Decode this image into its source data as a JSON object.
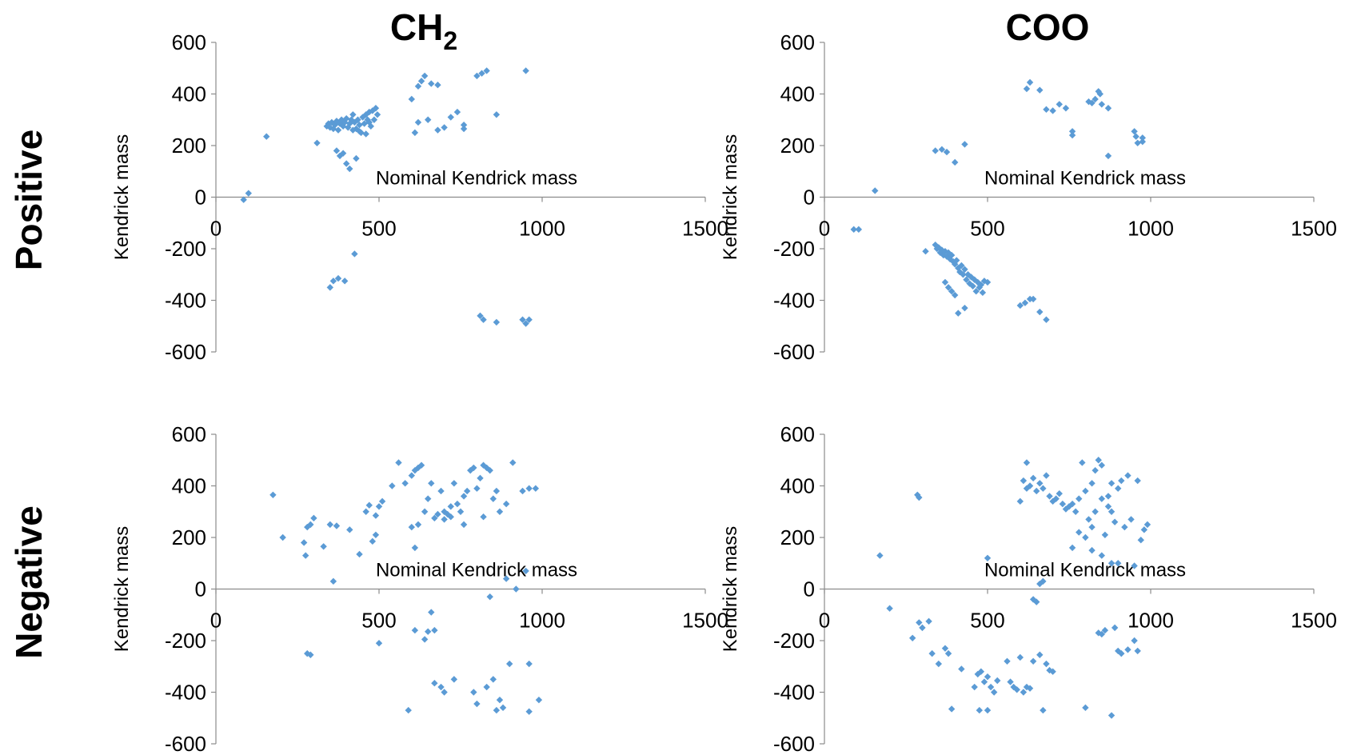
{
  "column_titles": {
    "ch2_base": "CH",
    "ch2_sub": "2",
    "coo": "COO"
  },
  "row_titles": {
    "positive": "Positive",
    "negative": "Negative"
  },
  "marker_color": "#5b9bd5",
  "chart_data": [
    {
      "type": "scatter",
      "title": "CH2",
      "row": "Positive",
      "xlabel": "Nominal Kendrick mass",
      "ylabel": "Kendrick mass",
      "xlim": [
        0,
        1500
      ],
      "ylim": [
        -600,
        600
      ],
      "xticks": [
        0,
        500,
        1000,
        1500
      ],
      "yticks": [
        600,
        400,
        200,
        0,
        -200,
        -400,
        -600
      ],
      "points": [
        [
          85,
          -10
        ],
        [
          100,
          15
        ],
        [
          155,
          235
        ],
        [
          310,
          210
        ],
        [
          340,
          275
        ],
        [
          345,
          285
        ],
        [
          350,
          270
        ],
        [
          355,
          290
        ],
        [
          360,
          265
        ],
        [
          365,
          280
        ],
        [
          370,
          295
        ],
        [
          375,
          260
        ],
        [
          380,
          285
        ],
        [
          385,
          300
        ],
        [
          390,
          275
        ],
        [
          395,
          290
        ],
        [
          400,
          305
        ],
        [
          405,
          270
        ],
        [
          410,
          285
        ],
        [
          415,
          300
        ],
        [
          420,
          320
        ],
        [
          425,
          290
        ],
        [
          430,
          265
        ],
        [
          435,
          300
        ],
        [
          440,
          280
        ],
        [
          445,
          250
        ],
        [
          450,
          310
        ],
        [
          455,
          285
        ],
        [
          460,
          320
        ],
        [
          465,
          300
        ],
        [
          470,
          330
        ],
        [
          475,
          275
        ],
        [
          480,
          335
        ],
        [
          485,
          300
        ],
        [
          490,
          345
        ],
        [
          495,
          320
        ],
        [
          370,
          180
        ],
        [
          380,
          160
        ],
        [
          390,
          170
        ],
        [
          400,
          130
        ],
        [
          410,
          110
        ],
        [
          430,
          150
        ],
        [
          420,
          260
        ],
        [
          440,
          255
        ],
        [
          460,
          245
        ],
        [
          470,
          290
        ],
        [
          350,
          -350
        ],
        [
          360,
          -325
        ],
        [
          375,
          -315
        ],
        [
          395,
          -325
        ],
        [
          425,
          -220
        ],
        [
          600,
          380
        ],
        [
          620,
          430
        ],
        [
          630,
          450
        ],
        [
          640,
          470
        ],
        [
          660,
          440
        ],
        [
          680,
          435
        ],
        [
          610,
          250
        ],
        [
          620,
          290
        ],
        [
          650,
          300
        ],
        [
          680,
          260
        ],
        [
          700,
          270
        ],
        [
          720,
          310
        ],
        [
          740,
          330
        ],
        [
          760,
          280
        ],
        [
          760,
          265
        ],
        [
          800,
          470
        ],
        [
          815,
          480
        ],
        [
          830,
          490
        ],
        [
          860,
          320
        ],
        [
          950,
          490
        ],
        [
          810,
          -460
        ],
        [
          820,
          -475
        ],
        [
          860,
          -485
        ],
        [
          940,
          -475
        ],
        [
          950,
          -490
        ],
        [
          960,
          -475
        ]
      ]
    },
    {
      "type": "scatter",
      "title": "COO",
      "row": "Positive",
      "xlabel": "Nominal Kendrick mass",
      "ylabel": "Kendrick mass",
      "xlim": [
        0,
        1500
      ],
      "ylim": [
        -600,
        600
      ],
      "xticks": [
        0,
        500,
        1000,
        1500
      ],
      "yticks": [
        600,
        400,
        200,
        0,
        -200,
        -400,
        -600
      ],
      "points": [
        [
          90,
          -125
        ],
        [
          105,
          -125
        ],
        [
          155,
          25
        ],
        [
          340,
          180
        ],
        [
          360,
          185
        ],
        [
          375,
          175
        ],
        [
          400,
          135
        ],
        [
          430,
          205
        ],
        [
          310,
          -210
        ],
        [
          340,
          -185
        ],
        [
          345,
          -200
        ],
        [
          350,
          -195
        ],
        [
          355,
          -215
        ],
        [
          360,
          -205
        ],
        [
          365,
          -225
        ],
        [
          370,
          -210
        ],
        [
          375,
          -230
        ],
        [
          380,
          -215
        ],
        [
          385,
          -240
        ],
        [
          390,
          -225
        ],
        [
          395,
          -250
        ],
        [
          400,
          -260
        ],
        [
          405,
          -245
        ],
        [
          410,
          -275
        ],
        [
          415,
          -290
        ],
        [
          420,
          -265
        ],
        [
          425,
          -300
        ],
        [
          430,
          -280
        ],
        [
          435,
          -320
        ],
        [
          440,
          -300
        ],
        [
          445,
          -335
        ],
        [
          450,
          -310
        ],
        [
          455,
          -345
        ],
        [
          460,
          -320
        ],
        [
          465,
          -365
        ],
        [
          470,
          -330
        ],
        [
          475,
          -350
        ],
        [
          480,
          -340
        ],
        [
          485,
          -370
        ],
        [
          490,
          -325
        ],
        [
          500,
          -330
        ],
        [
          370,
          -330
        ],
        [
          380,
          -350
        ],
        [
          390,
          -365
        ],
        [
          400,
          -380
        ],
        [
          410,
          -450
        ],
        [
          430,
          -430
        ],
        [
          600,
          -420
        ],
        [
          615,
          -410
        ],
        [
          630,
          -395
        ],
        [
          640,
          -395
        ],
        [
          660,
          -445
        ],
        [
          680,
          -475
        ],
        [
          620,
          420
        ],
        [
          630,
          445
        ],
        [
          660,
          415
        ],
        [
          680,
          340
        ],
        [
          700,
          335
        ],
        [
          720,
          360
        ],
        [
          740,
          345
        ],
        [
          760,
          240
        ],
        [
          760,
          255
        ],
        [
          810,
          370
        ],
        [
          820,
          365
        ],
        [
          830,
          380
        ],
        [
          840,
          410
        ],
        [
          845,
          400
        ],
        [
          850,
          360
        ],
        [
          870,
          345
        ],
        [
          870,
          160
        ],
        [
          950,
          255
        ],
        [
          955,
          235
        ],
        [
          960,
          210
        ],
        [
          975,
          215
        ],
        [
          975,
          230
        ]
      ]
    },
    {
      "type": "scatter",
      "title": "CH2",
      "row": "Negative",
      "xlabel": "Nominal Kendrick mass",
      "ylabel": "Kendrick mass",
      "xlim": [
        0,
        1500
      ],
      "ylim": [
        -600,
        600
      ],
      "xticks": [
        0,
        500,
        1000,
        1500
      ],
      "yticks": [
        600,
        400,
        200,
        0,
        -200,
        -400,
        -600
      ],
      "points": [
        [
          175,
          365
        ],
        [
          205,
          200
        ],
        [
          270,
          180
        ],
        [
          275,
          130
        ],
        [
          280,
          240
        ],
        [
          290,
          250
        ],
        [
          300,
          275
        ],
        [
          330,
          165
        ],
        [
          350,
          250
        ],
        [
          360,
          30
        ],
        [
          370,
          245
        ],
        [
          410,
          230
        ],
        [
          440,
          135
        ],
        [
          460,
          300
        ],
        [
          470,
          325
        ],
        [
          480,
          185
        ],
        [
          490,
          285
        ],
        [
          500,
          320
        ],
        [
          510,
          340
        ],
        [
          490,
          210
        ],
        [
          540,
          400
        ],
        [
          560,
          490
        ],
        [
          580,
          410
        ],
        [
          600,
          440
        ],
        [
          610,
          460
        ],
        [
          620,
          470
        ],
        [
          630,
          480
        ],
        [
          600,
          240
        ],
        [
          610,
          160
        ],
        [
          620,
          250
        ],
        [
          640,
          300
        ],
        [
          650,
          350
        ],
        [
          660,
          410
        ],
        [
          670,
          275
        ],
        [
          680,
          290
        ],
        [
          690,
          380
        ],
        [
          700,
          300
        ],
        [
          710,
          290
        ],
        [
          720,
          320
        ],
        [
          730,
          410
        ],
        [
          740,
          330
        ],
        [
          750,
          300
        ],
        [
          760,
          360
        ],
        [
          770,
          380
        ],
        [
          780,
          460
        ],
        [
          790,
          470
        ],
        [
          800,
          390
        ],
        [
          810,
          430
        ],
        [
          820,
          480
        ],
        [
          830,
          470
        ],
        [
          840,
          460
        ],
        [
          850,
          350
        ],
        [
          860,
          380
        ],
        [
          870,
          300
        ],
        [
          890,
          330
        ],
        [
          910,
          490
        ],
        [
          940,
          380
        ],
        [
          960,
          390
        ],
        [
          980,
          390
        ],
        [
          700,
          270
        ],
        [
          720,
          280
        ],
        [
          760,
          250
        ],
        [
          820,
          280
        ],
        [
          280,
          -250
        ],
        [
          290,
          -255
        ],
        [
          500,
          -210
        ],
        [
          590,
          -470
        ],
        [
          610,
          -160
        ],
        [
          640,
          -195
        ],
        [
          650,
          -165
        ],
        [
          660,
          -90
        ],
        [
          670,
          -160
        ],
        [
          670,
          -365
        ],
        [
          690,
          -380
        ],
        [
          700,
          -400
        ],
        [
          730,
          -350
        ],
        [
          790,
          -400
        ],
        [
          800,
          -445
        ],
        [
          830,
          -380
        ],
        [
          840,
          -30
        ],
        [
          850,
          -350
        ],
        [
          860,
          -470
        ],
        [
          870,
          -430
        ],
        [
          880,
          -460
        ],
        [
          890,
          40
        ],
        [
          900,
          -290
        ],
        [
          920,
          0
        ],
        [
          950,
          70
        ],
        [
          960,
          -290
        ],
        [
          960,
          -475
        ],
        [
          990,
          -430
        ]
      ]
    },
    {
      "type": "scatter",
      "title": "COO",
      "row": "Negative",
      "xlabel": "Nominal Kendrick mass",
      "ylabel": "Kendrick mass",
      "xlim": [
        0,
        1500
      ],
      "ylim": [
        -600,
        600
      ],
      "xticks": [
        0,
        500,
        1000,
        1500
      ],
      "yticks": [
        600,
        400,
        200,
        0,
        -200,
        -400,
        -600
      ],
      "points": [
        [
          170,
          130
        ],
        [
          200,
          -75
        ],
        [
          270,
          -190
        ],
        [
          285,
          365
        ],
        [
          290,
          355
        ],
        [
          290,
          -130
        ],
        [
          300,
          -150
        ],
        [
          320,
          -125
        ],
        [
          330,
          -250
        ],
        [
          350,
          -290
        ],
        [
          370,
          -230
        ],
        [
          380,
          -250
        ],
        [
          390,
          -465
        ],
        [
          420,
          -310
        ],
        [
          460,
          -380
        ],
        [
          470,
          -330
        ],
        [
          475,
          -470
        ],
        [
          480,
          -320
        ],
        [
          490,
          -360
        ],
        [
          500,
          -340
        ],
        [
          500,
          -470
        ],
        [
          510,
          -380
        ],
        [
          520,
          -400
        ],
        [
          530,
          -355
        ],
        [
          560,
          -280
        ],
        [
          570,
          -360
        ],
        [
          580,
          -380
        ],
        [
          590,
          -390
        ],
        [
          600,
          -265
        ],
        [
          610,
          -400
        ],
        [
          620,
          -380
        ],
        [
          630,
          -385
        ],
        [
          640,
          -280
        ],
        [
          660,
          -255
        ],
        [
          670,
          -470
        ],
        [
          680,
          -290
        ],
        [
          690,
          -315
        ],
        [
          700,
          -320
        ],
        [
          500,
          120
        ],
        [
          600,
          340
        ],
        [
          610,
          420
        ],
        [
          620,
          390
        ],
        [
          630,
          400
        ],
        [
          640,
          430
        ],
        [
          650,
          380
        ],
        [
          660,
          410
        ],
        [
          670,
          390
        ],
        [
          680,
          440
        ],
        [
          690,
          360
        ],
        [
          700,
          340
        ],
        [
          710,
          350
        ],
        [
          720,
          370
        ],
        [
          730,
          330
        ],
        [
          740,
          310
        ],
        [
          750,
          320
        ],
        [
          760,
          330
        ],
        [
          770,
          300
        ],
        [
          780,
          350
        ],
        [
          790,
          490
        ],
        [
          800,
          380
        ],
        [
          810,
          270
        ],
        [
          820,
          240
        ],
        [
          830,
          300
        ],
        [
          840,
          500
        ],
        [
          850,
          480
        ],
        [
          860,
          210
        ],
        [
          870,
          320
        ],
        [
          880,
          300
        ],
        [
          890,
          260
        ],
        [
          900,
          390
        ],
        [
          920,
          240
        ],
        [
          940,
          270
        ],
        [
          960,
          420
        ],
        [
          970,
          190
        ],
        [
          980,
          230
        ],
        [
          990,
          250
        ],
        [
          620,
          490
        ],
        [
          820,
          410
        ],
        [
          830,
          460
        ],
        [
          850,
          350
        ],
        [
          870,
          360
        ],
        [
          880,
          410
        ],
        [
          910,
          420
        ],
        [
          930,
          440
        ],
        [
          760,
          160
        ],
        [
          780,
          220
        ],
        [
          800,
          200
        ],
        [
          820,
          150
        ],
        [
          850,
          130
        ],
        [
          880,
          100
        ],
        [
          900,
          100
        ],
        [
          950,
          90
        ],
        [
          640,
          -40
        ],
        [
          650,
          -50
        ],
        [
          660,
          20
        ],
        [
          670,
          30
        ],
        [
          800,
          -460
        ],
        [
          840,
          -170
        ],
        [
          850,
          -175
        ],
        [
          860,
          -160
        ],
        [
          880,
          -490
        ],
        [
          890,
          -150
        ],
        [
          900,
          -240
        ],
        [
          910,
          -250
        ],
        [
          930,
          -235
        ],
        [
          950,
          -200
        ],
        [
          960,
          -240
        ]
      ]
    }
  ]
}
